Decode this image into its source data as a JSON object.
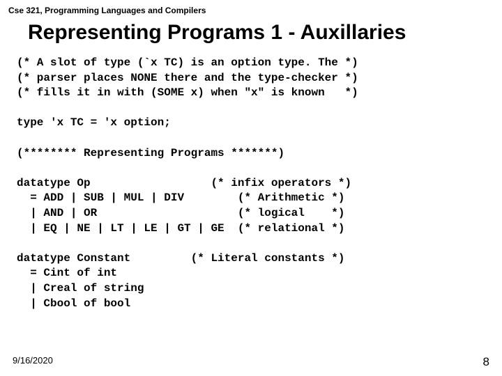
{
  "header": "Cse 321, Programming Languages and Compilers",
  "title": "Representing Programs 1 - Auxillaries",
  "code": "(* A slot of type (`x TC) is an option type. The *)\n(* parser places NONE there and the type-checker *)\n(* fills it in with (SOME x) when \"x\" is known   *)\n\ntype 'x TC = 'x option;\n\n(******** Representing Programs *******)\n\ndatatype Op                  (* infix operators *)\n  = ADD | SUB | MUL | DIV        (* Arithmetic *)\n  | AND | OR                     (* logical    *)\n  | EQ | NE | LT | LE | GT | GE  (* relational *)\n\ndatatype Constant         (* Literal constants *)\n  = Cint of int\n  | Creal of string\n  | Cbool of bool",
  "footer_date": "9/16/2020",
  "footer_page": "8",
  "colors": {
    "background": "#ffffff",
    "text": "#000000"
  },
  "typography": {
    "header_fontsize": 12,
    "title_fontsize": 30,
    "code_fontsize": 16,
    "footer_fontsize": 13,
    "code_font": "Courier New",
    "ui_font": "Arial"
  }
}
